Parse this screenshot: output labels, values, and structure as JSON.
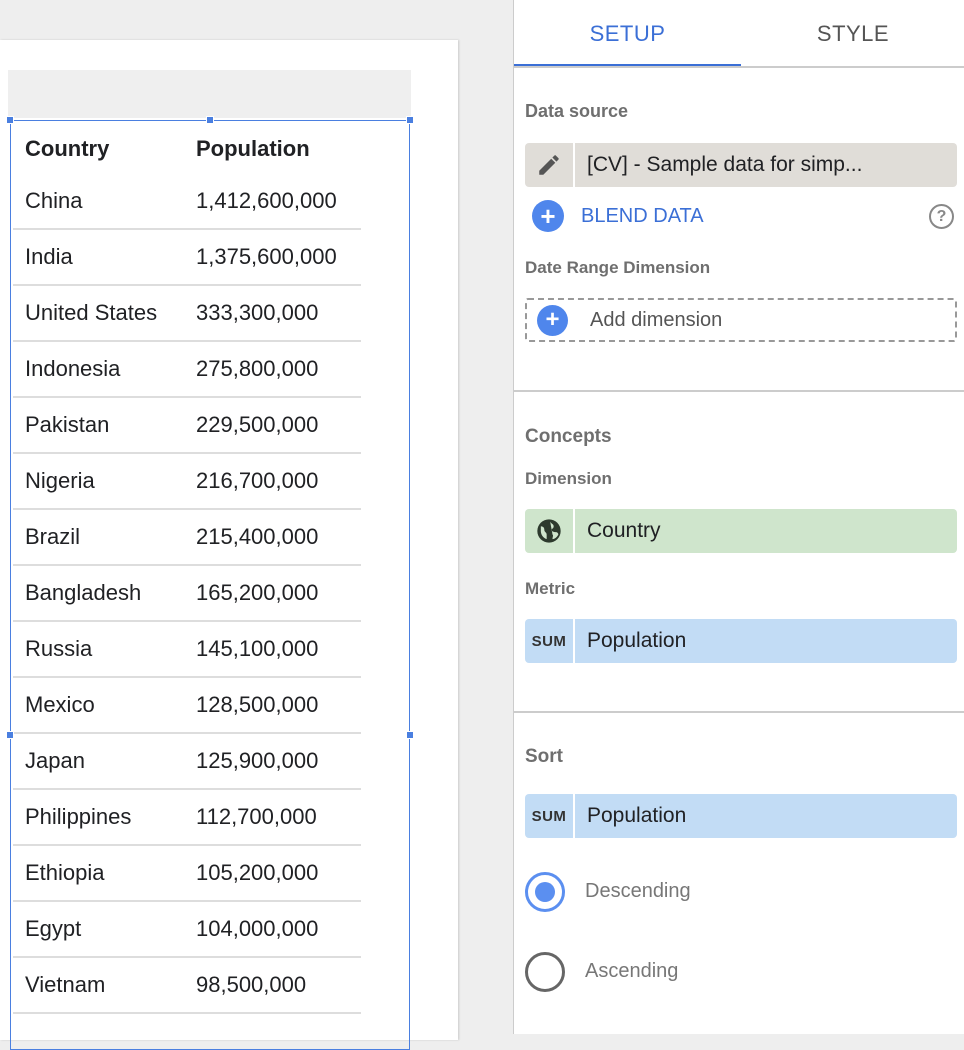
{
  "tabs": [
    {
      "label": "SETUP",
      "active": true
    },
    {
      "label": "STYLE",
      "active": false
    }
  ],
  "table": {
    "headers": [
      "Country",
      "Population"
    ],
    "rows": [
      [
        "China",
        "1,412,600,000"
      ],
      [
        "India",
        "1,375,600,000"
      ],
      [
        "United States",
        "333,300,000"
      ],
      [
        "Indonesia",
        "275,800,000"
      ],
      [
        "Pakistan",
        "229,500,000"
      ],
      [
        "Nigeria",
        "216,700,000"
      ],
      [
        "Brazil",
        "215,400,000"
      ],
      [
        "Bangladesh",
        "165,200,000"
      ],
      [
        "Russia",
        "145,100,000"
      ],
      [
        "Mexico",
        "128,500,000"
      ],
      [
        "Japan",
        "125,900,000"
      ],
      [
        "Philippines",
        "112,700,000"
      ],
      [
        "Ethiopia",
        "105,200,000"
      ],
      [
        "Egypt",
        "104,000,000"
      ],
      [
        "Vietnam",
        "98,500,000"
      ]
    ]
  },
  "setup": {
    "data_source_label": "Data source",
    "data_source": "[CV] - Sample data for simp...",
    "blend_data": "BLEND DATA",
    "date_range_label": "Date Range Dimension",
    "add_dimension": "Add dimension",
    "concepts_label": "Concepts",
    "dimension_label": "Dimension",
    "dimension": "Country",
    "metric_label": "Metric",
    "metric_agg": "SUM",
    "metric": "Population",
    "sort_label": "Sort",
    "sort_agg": "SUM",
    "sort_field": "Population",
    "descending": "Descending",
    "ascending": "Ascending",
    "sort_order": "Descending"
  },
  "colors": {
    "accent": "#4a7fe0",
    "dimension_chip": "#cfe5cc",
    "metric_chip": "#c2dcf5",
    "source_chip": "#e0ddd8"
  }
}
